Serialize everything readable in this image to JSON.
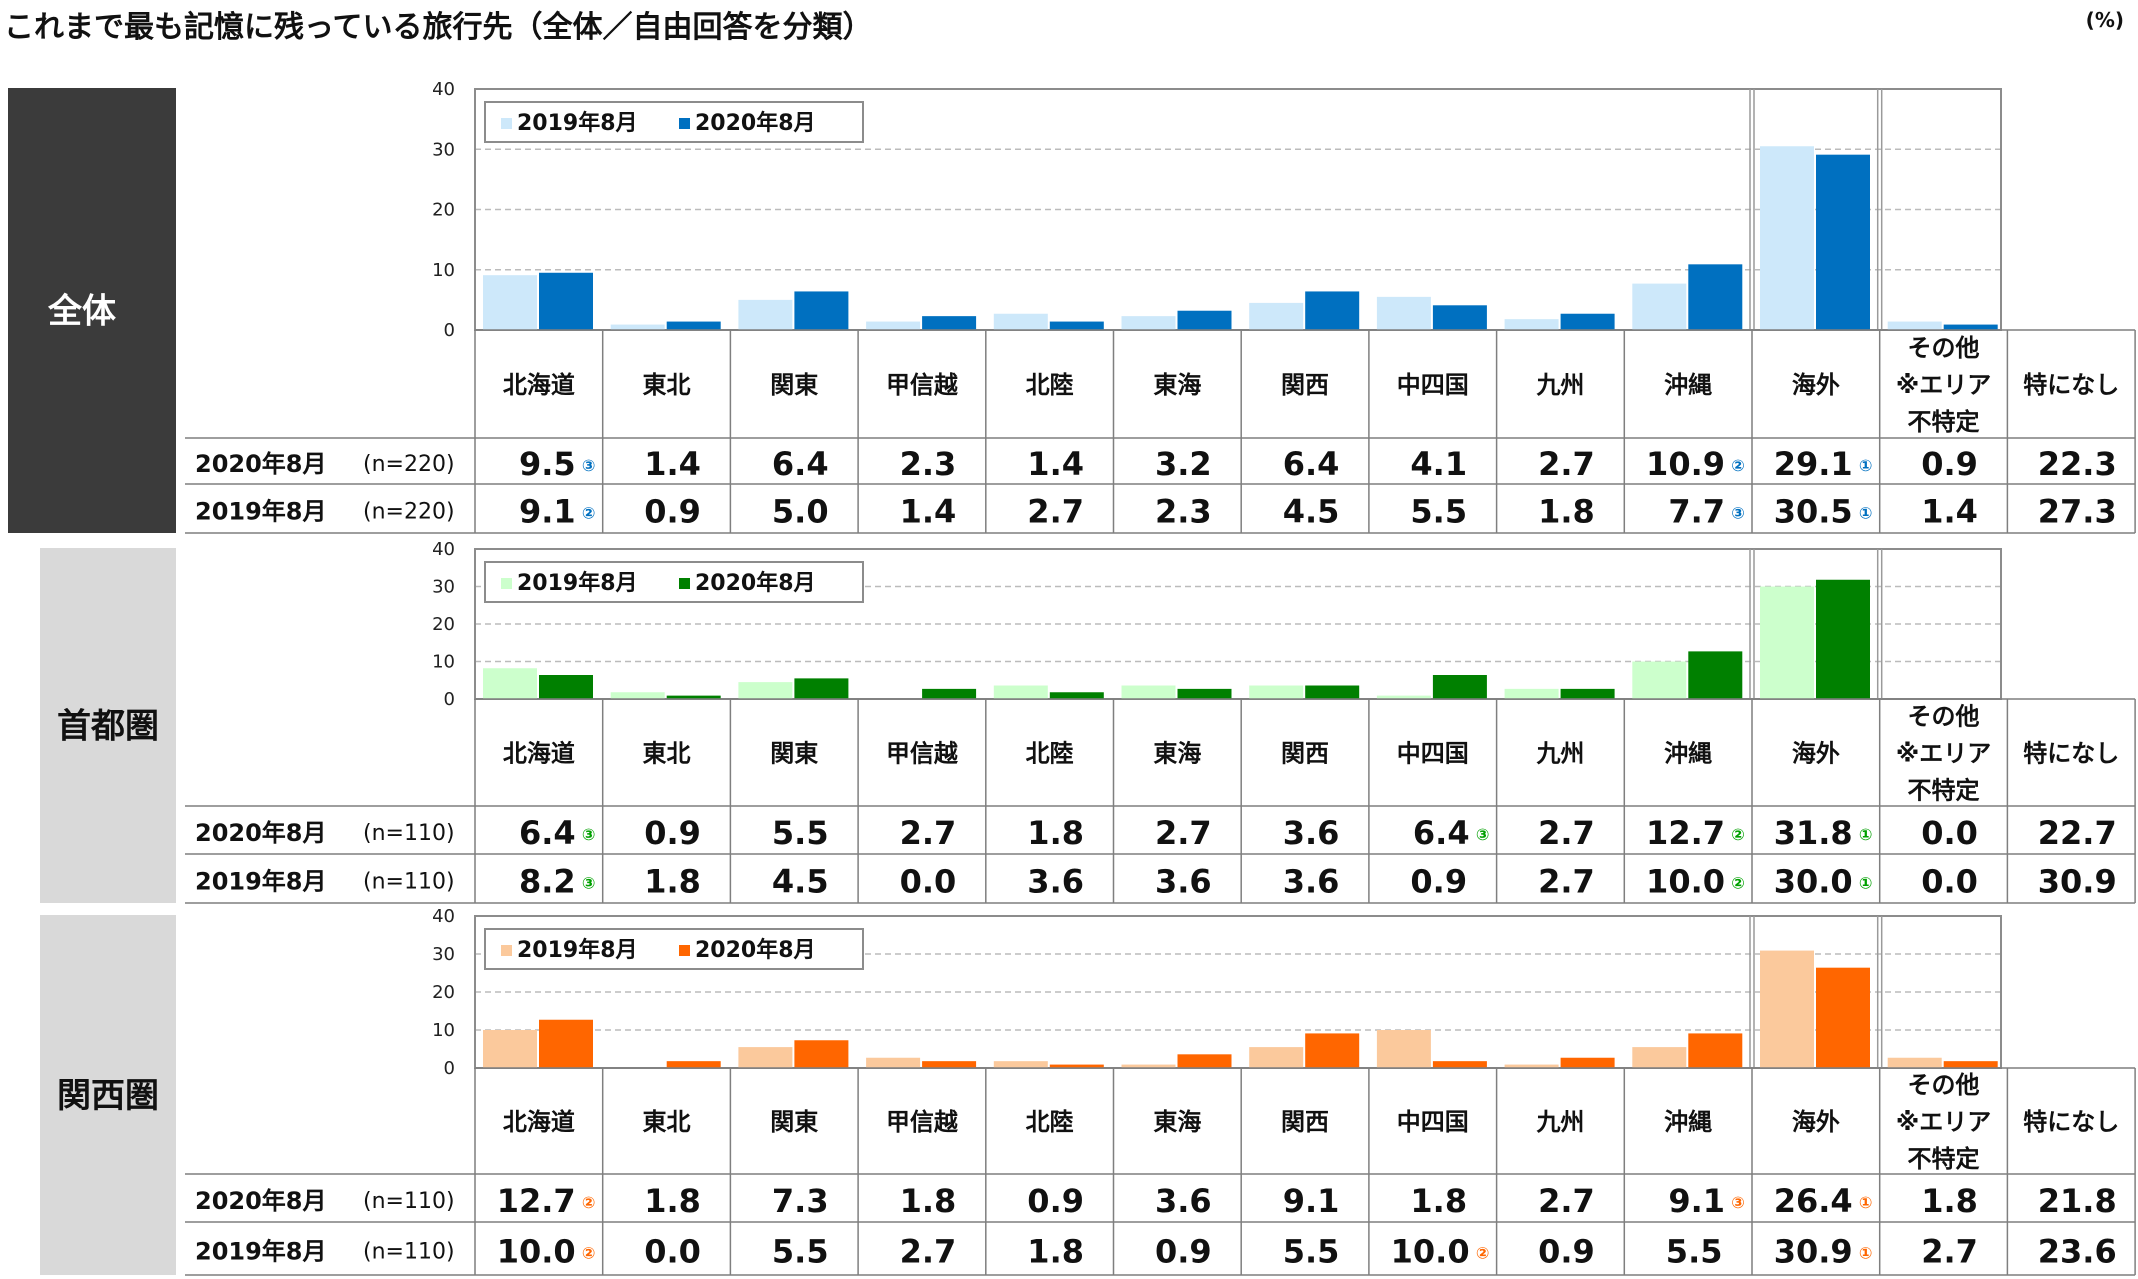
{
  "title": "これまで最も記憶に残っている旅行先（全体／自由回答を分類）",
  "unit": "(%)",
  "categories": [
    "北海道",
    "東北",
    "関東",
    "甲信越",
    "北陸",
    "東海",
    "関西",
    "中四国",
    "九州",
    "沖縄",
    "海外",
    "その他\n※エリア\n不特定",
    "特になし"
  ],
  "chart_data": [
    {
      "type": "bar",
      "panel": "全体",
      "sidebar_bg": "#3b3b3b",
      "sidebar_fg": "#ffffff",
      "colors": {
        "2019": "#cde8fa",
        "2020": "#0070c0",
        "rank": "#0070c0"
      },
      "ylim": [
        0,
        40
      ],
      "yticks": [
        "0",
        "10",
        "20",
        "30",
        "40"
      ],
      "legend": [
        "2019年8月",
        "2020年8月"
      ],
      "series": [
        {
          "name": "2019年8月",
          "values": [
            9.1,
            0.9,
            5.0,
            1.4,
            2.7,
            2.3,
            4.5,
            5.5,
            1.8,
            7.7,
            30.5,
            1.4,
            27.3
          ]
        },
        {
          "name": "2020年8月",
          "values": [
            9.5,
            1.4,
            6.4,
            2.3,
            1.4,
            3.2,
            6.4,
            4.1,
            2.7,
            10.9,
            29.1,
            0.9,
            22.3
          ]
        }
      ],
      "rows": [
        {
          "label": "2020年8月",
          "n": "(n=220)",
          "cells": [
            "9.5",
            "1.4",
            "6.4",
            "2.3",
            "1.4",
            "3.2",
            "6.4",
            "4.1",
            "2.7",
            "10.9",
            "29.1",
            "0.9",
            "22.3"
          ],
          "ranks": [
            "③",
            "",
            "",
            "",
            "",
            "",
            "",
            "",
            "",
            "②",
            "①",
            "",
            ""
          ]
        },
        {
          "label": "2019年8月",
          "n": "(n=220)",
          "cells": [
            "9.1",
            "0.9",
            "5.0",
            "1.4",
            "2.7",
            "2.3",
            "4.5",
            "5.5",
            "1.8",
            "7.7",
            "30.5",
            "1.4",
            "27.3"
          ],
          "ranks": [
            "②",
            "",
            "",
            "",
            "",
            "",
            "",
            "",
            "",
            "③",
            "①",
            "",
            ""
          ]
        }
      ]
    },
    {
      "type": "bar",
      "panel": "首都圏",
      "sidebar_bg": "#d9d9d9",
      "sidebar_fg": "#111111",
      "colors": {
        "2019": "#ccffcc",
        "2020": "#008000",
        "rank": "#00a000"
      },
      "ylim": [
        0,
        40
      ],
      "yticks": [
        "0",
        "10",
        "20",
        "30",
        "40"
      ],
      "legend": [
        "2019年8月",
        "2020年8月"
      ],
      "series": [
        {
          "name": "2019年8月",
          "values": [
            8.2,
            1.8,
            4.5,
            0.0,
            3.6,
            3.6,
            3.6,
            0.9,
            2.7,
            10.0,
            30.0,
            0.0,
            30.9
          ]
        },
        {
          "name": "2020年8月",
          "values": [
            6.4,
            0.9,
            5.5,
            2.7,
            1.8,
            2.7,
            3.6,
            6.4,
            2.7,
            12.7,
            31.8,
            0.0,
            22.7
          ]
        }
      ],
      "rows": [
        {
          "label": "2020年8月",
          "n": "(n=110)",
          "cells": [
            "6.4",
            "0.9",
            "5.5",
            "2.7",
            "1.8",
            "2.7",
            "3.6",
            "6.4",
            "2.7",
            "12.7",
            "31.8",
            "0.0",
            "22.7"
          ],
          "ranks": [
            "③",
            "",
            "",
            "",
            "",
            "",
            "",
            "③",
            "",
            "②",
            "①",
            "",
            ""
          ]
        },
        {
          "label": "2019年8月",
          "n": "(n=110)",
          "cells": [
            "8.2",
            "1.8",
            "4.5",
            "0.0",
            "3.6",
            "3.6",
            "3.6",
            "0.9",
            "2.7",
            "10.0",
            "30.0",
            "0.0",
            "30.9"
          ],
          "ranks": [
            "③",
            "",
            "",
            "",
            "",
            "",
            "",
            "",
            "",
            "②",
            "①",
            "",
            ""
          ]
        }
      ]
    },
    {
      "type": "bar",
      "panel": "関西圏",
      "sidebar_bg": "#d9d9d9",
      "sidebar_fg": "#111111",
      "colors": {
        "2019": "#fbc99c",
        "2020": "#ff6600",
        "rank": "#ff6600"
      },
      "ylim": [
        0,
        40
      ],
      "yticks": [
        "0",
        "10",
        "20",
        "30",
        "40"
      ],
      "legend": [
        "2019年8月",
        "2020年8月"
      ],
      "series": [
        {
          "name": "2019年8月",
          "values": [
            10.0,
            0.0,
            5.5,
            2.7,
            1.8,
            0.9,
            5.5,
            10.0,
            0.9,
            5.5,
            30.9,
            2.7,
            23.6
          ]
        },
        {
          "name": "2020年8月",
          "values": [
            12.7,
            1.8,
            7.3,
            1.8,
            0.9,
            3.6,
            9.1,
            1.8,
            2.7,
            9.1,
            26.4,
            1.8,
            21.8
          ]
        }
      ],
      "rows": [
        {
          "label": "2020年8月",
          "n": "(n=110)",
          "cells": [
            "12.7",
            "1.8",
            "7.3",
            "1.8",
            "0.9",
            "3.6",
            "9.1",
            "1.8",
            "2.7",
            "9.1",
            "26.4",
            "1.8",
            "21.8"
          ],
          "ranks": [
            "②",
            "",
            "",
            "",
            "",
            "",
            "",
            "",
            "",
            "③",
            "①",
            "",
            ""
          ]
        },
        {
          "label": "2019年8月",
          "n": "(n=110)",
          "cells": [
            "10.0",
            "0.0",
            "5.5",
            "2.7",
            "1.8",
            "0.9",
            "5.5",
            "10.0",
            "0.9",
            "5.5",
            "30.9",
            "2.7",
            "23.6"
          ],
          "ranks": [
            "②",
            "",
            "",
            "",
            "",
            "",
            "",
            "②",
            "",
            "",
            "①",
            "",
            ""
          ]
        }
      ]
    }
  ]
}
